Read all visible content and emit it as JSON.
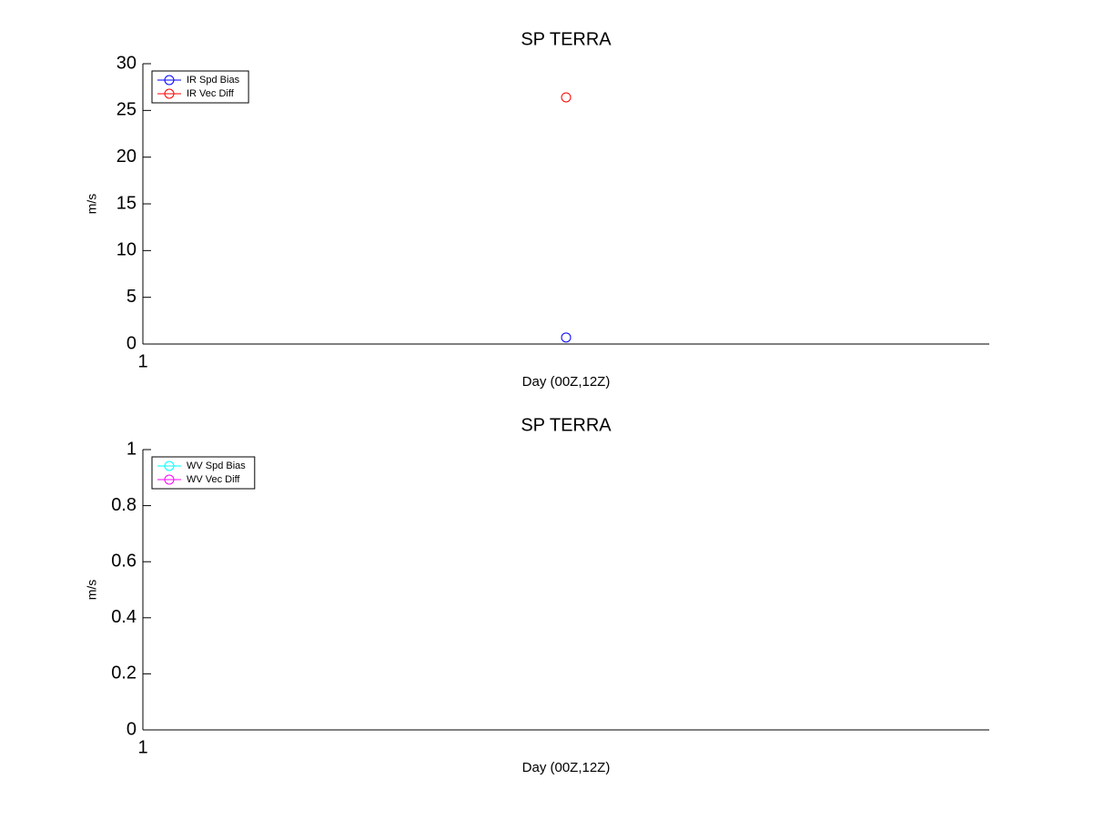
{
  "chart_data": [
    {
      "type": "scatter",
      "title": "SP TERRA",
      "x_label": "Day (00Z,12Z)",
      "y_label": "m/s",
      "x": [
        1.5
      ],
      "xlim": [
        1,
        2
      ],
      "xticks": [
        1
      ],
      "ylim": [
        0,
        30
      ],
      "yticks": [
        0,
        5,
        10,
        15,
        20,
        25,
        30
      ],
      "legend": "upper left",
      "series": [
        {
          "name": "IR Spd Bias",
          "color": "#0000ff",
          "values": [
            0.7
          ]
        },
        {
          "name": "IR Vec Diff",
          "color": "#ff0000",
          "values": [
            26.4
          ]
        }
      ]
    },
    {
      "type": "scatter",
      "title": "SP TERRA",
      "x_label": "Day (00Z,12Z)",
      "y_label": "m/s",
      "x": [
        1.5
      ],
      "xlim": [
        1,
        2
      ],
      "xticks": [
        1
      ],
      "ylim": [
        0,
        1
      ],
      "yticks": [
        0,
        0.2,
        0.4,
        0.6,
        0.8,
        1
      ],
      "legend": "upper left",
      "series": [
        {
          "name": "WV Spd Bias",
          "color": "#00ffff",
          "values": [
            null
          ]
        },
        {
          "name": "WV Vec Diff",
          "color": "#ff00ff",
          "values": [
            null
          ]
        }
      ]
    }
  ]
}
